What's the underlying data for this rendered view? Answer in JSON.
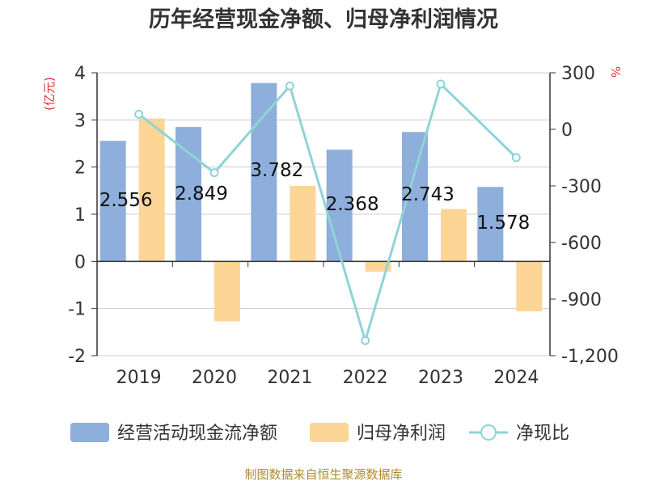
{
  "chart_data": {
    "type": "bar+line",
    "title": "历年经营现金净额、归母净利润情况",
    "categories": [
      "2019",
      "2020",
      "2021",
      "2022",
      "2023",
      "2024"
    ],
    "left_axis": {
      "unit": "(亿元)",
      "ylim": [
        -2,
        4
      ],
      "ticks": [
        "4",
        "3",
        "2",
        "1",
        "0",
        "-1",
        "-2"
      ]
    },
    "right_axis": {
      "unit": "%",
      "ylim": [
        -1200,
        300
      ],
      "ticks": [
        "300",
        "0",
        "-300",
        "-600",
        "-900",
        "-1,200"
      ]
    },
    "series": [
      {
        "name": "经营活动现金流净额",
        "type": "bar",
        "axis": "left",
        "color": "#8eaedb",
        "values": [
          2.556,
          2.849,
          3.782,
          2.368,
          2.743,
          1.578
        ],
        "labels": [
          "2.556",
          "2.849",
          "3.782",
          "2.368",
          "2.743",
          "1.578"
        ]
      },
      {
        "name": "归母净利润",
        "type": "bar",
        "axis": "left",
        "color": "#fdd597",
        "values": [
          3.03,
          -1.27,
          1.6,
          -0.22,
          1.11,
          -1.06
        ]
      },
      {
        "name": "净现比",
        "type": "line",
        "axis": "right",
        "color": "#8fd4d6",
        "values": [
          80,
          -230,
          230,
          -1120,
          240,
          -150
        ]
      }
    ],
    "source": "制图数据来自恒生聚源数据库"
  }
}
